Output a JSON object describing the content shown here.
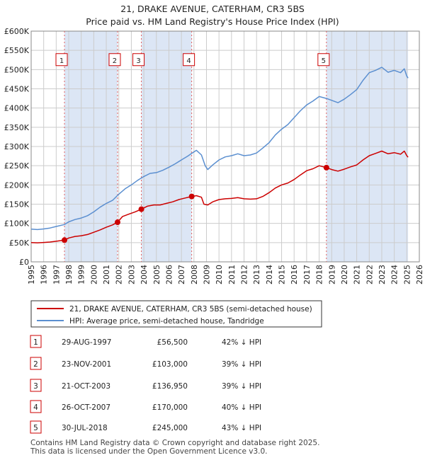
{
  "chart_data": {
    "type": "line",
    "title": "21, DRAKE AVENUE, CATERHAM, CR3 5BS",
    "subtitle": "Price paid vs. HM Land Registry's House Price Index (HPI)",
    "xlim": [
      1995,
      2026
    ],
    "ylim": [
      0,
      600000
    ],
    "x_ticks": [
      1995,
      1996,
      1997,
      1998,
      1999,
      2000,
      2001,
      2002,
      2003,
      2004,
      2005,
      2006,
      2007,
      2008,
      2009,
      2010,
      2011,
      2012,
      2013,
      2014,
      2015,
      2016,
      2017,
      2018,
      2019,
      2020,
      2021,
      2022,
      2023,
      2024,
      2025,
      2026
    ],
    "y_ticks": [
      {
        "value": 0,
        "label": "£0"
      },
      {
        "value": 50000,
        "label": "£50K"
      },
      {
        "value": 100000,
        "label": "£100K"
      },
      {
        "value": 150000,
        "label": "£150K"
      },
      {
        "value": 200000,
        "label": "£200K"
      },
      {
        "value": 250000,
        "label": "£250K"
      },
      {
        "value": 300000,
        "label": "£300K"
      },
      {
        "value": 350000,
        "label": "£350K"
      },
      {
        "value": 400000,
        "label": "£400K"
      },
      {
        "value": 450000,
        "label": "£450K"
      },
      {
        "value": 500000,
        "label": "£500K"
      },
      {
        "value": 550000,
        "label": "£550K"
      },
      {
        "value": 600000,
        "label": "£600K"
      }
    ],
    "shaded_ranges": [
      [
        1997.66,
        2001.9
      ],
      [
        2003.8,
        2007.82
      ],
      [
        2018.58,
        2025.1
      ]
    ],
    "series": [
      {
        "name": "21, DRAKE AVENUE, CATERHAM, CR3 5BS (semi-detached house)",
        "color": "#cc0000",
        "x": [
          1995,
          1995.5,
          1996,
          1996.5,
          1997,
          1997.66,
          1998,
          1998.5,
          1999,
          1999.5,
          2000,
          2000.5,
          2001,
          2001.5,
          2001.9,
          2002.3,
          2002.8,
          2003.3,
          2003.8,
          2004.3,
          2004.8,
          2005.3,
          2005.8,
          2006.3,
          2006.8,
          2007.3,
          2007.82,
          2008.2,
          2008.6,
          2008.8,
          2009.1,
          2009.5,
          2010,
          2010.5,
          2011,
          2011.5,
          2012,
          2012.5,
          2013,
          2013.5,
          2014,
          2014.5,
          2015,
          2015.5,
          2016,
          2016.5,
          2017,
          2017.5,
          2018,
          2018.58,
          2019,
          2019.5,
          2020,
          2020.5,
          2021,
          2021.5,
          2022,
          2022.5,
          2023,
          2023.5,
          2024,
          2024.5,
          2024.8,
          2025,
          2025.1
        ],
        "y": [
          50000,
          49500,
          50500,
          51500,
          53500,
          56500,
          62000,
          66000,
          68000,
          71000,
          77000,
          83000,
          90000,
          96000,
          103000,
          118000,
          124000,
          130000,
          136950,
          145000,
          148000,
          148000,
          152000,
          156000,
          162000,
          166000,
          170000,
          172000,
          168000,
          150000,
          148000,
          156000,
          162000,
          164000,
          165000,
          167000,
          164000,
          163000,
          164000,
          170000,
          180000,
          192000,
          200000,
          205000,
          214000,
          226000,
          237000,
          242000,
          250000,
          245000,
          240000,
          236000,
          241000,
          247000,
          252000,
          265000,
          276000,
          282000,
          288000,
          281000,
          284000,
          280000,
          288000,
          276000,
          272000
        ]
      },
      {
        "name": "HPI: Average price, semi-detached house, Tandridge",
        "color": "#5b8fd0",
        "x": [
          1995,
          1995.5,
          1996,
          1996.5,
          1997,
          1997.66,
          1998,
          1998.5,
          1999,
          1999.5,
          2000,
          2000.5,
          2001,
          2001.5,
          2002,
          2002.5,
          2003,
          2003.5,
          2004,
          2004.5,
          2005,
          2005.5,
          2006,
          2006.5,
          2007,
          2007.5,
          2007.82,
          2008.2,
          2008.6,
          2008.9,
          2009.1,
          2009.5,
          2010,
          2010.5,
          2011,
          2011.5,
          2012,
          2012.5,
          2013,
          2013.5,
          2014,
          2014.5,
          2015,
          2015.5,
          2016,
          2016.5,
          2017,
          2017.5,
          2018,
          2018.58,
          2019,
          2019.5,
          2020,
          2020.5,
          2021,
          2021.5,
          2022,
          2022.5,
          2023,
          2023.5,
          2024,
          2024.5,
          2024.8,
          2025,
          2025.1
        ],
        "y": [
          85000,
          84000,
          85500,
          88000,
          92000,
          97000,
          104000,
          110000,
          114000,
          120000,
          130000,
          142000,
          152000,
          160000,
          176000,
          190000,
          200000,
          212000,
          222000,
          230000,
          232000,
          238000,
          246000,
          255000,
          265000,
          275000,
          282000,
          290000,
          278000,
          250000,
          240000,
          252000,
          265000,
          273000,
          276000,
          281000,
          276000,
          278000,
          283000,
          296000,
          310000,
          330000,
          345000,
          357000,
          375000,
          393000,
          408000,
          418000,
          430000,
          425000,
          420000,
          414000,
          423000,
          435000,
          448000,
          472000,
          492000,
          498000,
          506000,
          493000,
          498000,
          492000,
          502000,
          483000,
          478000
        ]
      }
    ],
    "markers": [
      {
        "id": "1",
        "x": 1997.66,
        "y": 56500,
        "box_y": 525000
      },
      {
        "id": "2",
        "x": 2001.9,
        "y": 103000,
        "box_y": 525000
      },
      {
        "id": "3",
        "x": 2003.8,
        "y": 136950,
        "box_y": 525000
      },
      {
        "id": "4",
        "x": 2007.82,
        "y": 170000,
        "box_y": 525000
      },
      {
        "id": "5",
        "x": 2018.58,
        "y": 245000,
        "box_y": 525000
      }
    ]
  },
  "legend": {
    "property_label": "21, DRAKE AVENUE, CATERHAM, CR3 5BS (semi-detached house)",
    "hpi_label": "HPI: Average price, semi-detached house, Tandridge"
  },
  "transactions": [
    {
      "num": "1",
      "date": "29-AUG-1997",
      "price": "£56,500",
      "hpi": "42% ↓ HPI"
    },
    {
      "num": "2",
      "date": "23-NOV-2001",
      "price": "£103,000",
      "hpi": "39% ↓ HPI"
    },
    {
      "num": "3",
      "date": "21-OCT-2003",
      "price": "£136,950",
      "hpi": "39% ↓ HPI"
    },
    {
      "num": "4",
      "date": "26-OCT-2007",
      "price": "£170,000",
      "hpi": "40% ↓ HPI"
    },
    {
      "num": "5",
      "date": "30-JUL-2018",
      "price": "£245,000",
      "hpi": "43% ↓ HPI"
    }
  ],
  "footer": {
    "line1": "Contains HM Land Registry data © Crown copyright and database right 2025.",
    "line2": "This data is licensed under the Open Government Licence v3.0."
  },
  "colors": {
    "property": "#cc0000",
    "hpi": "#5b8fd0",
    "shade": "#dce6f5",
    "grid": "#cccccc",
    "box_border": "#cc0000",
    "vline": "#e06060"
  }
}
